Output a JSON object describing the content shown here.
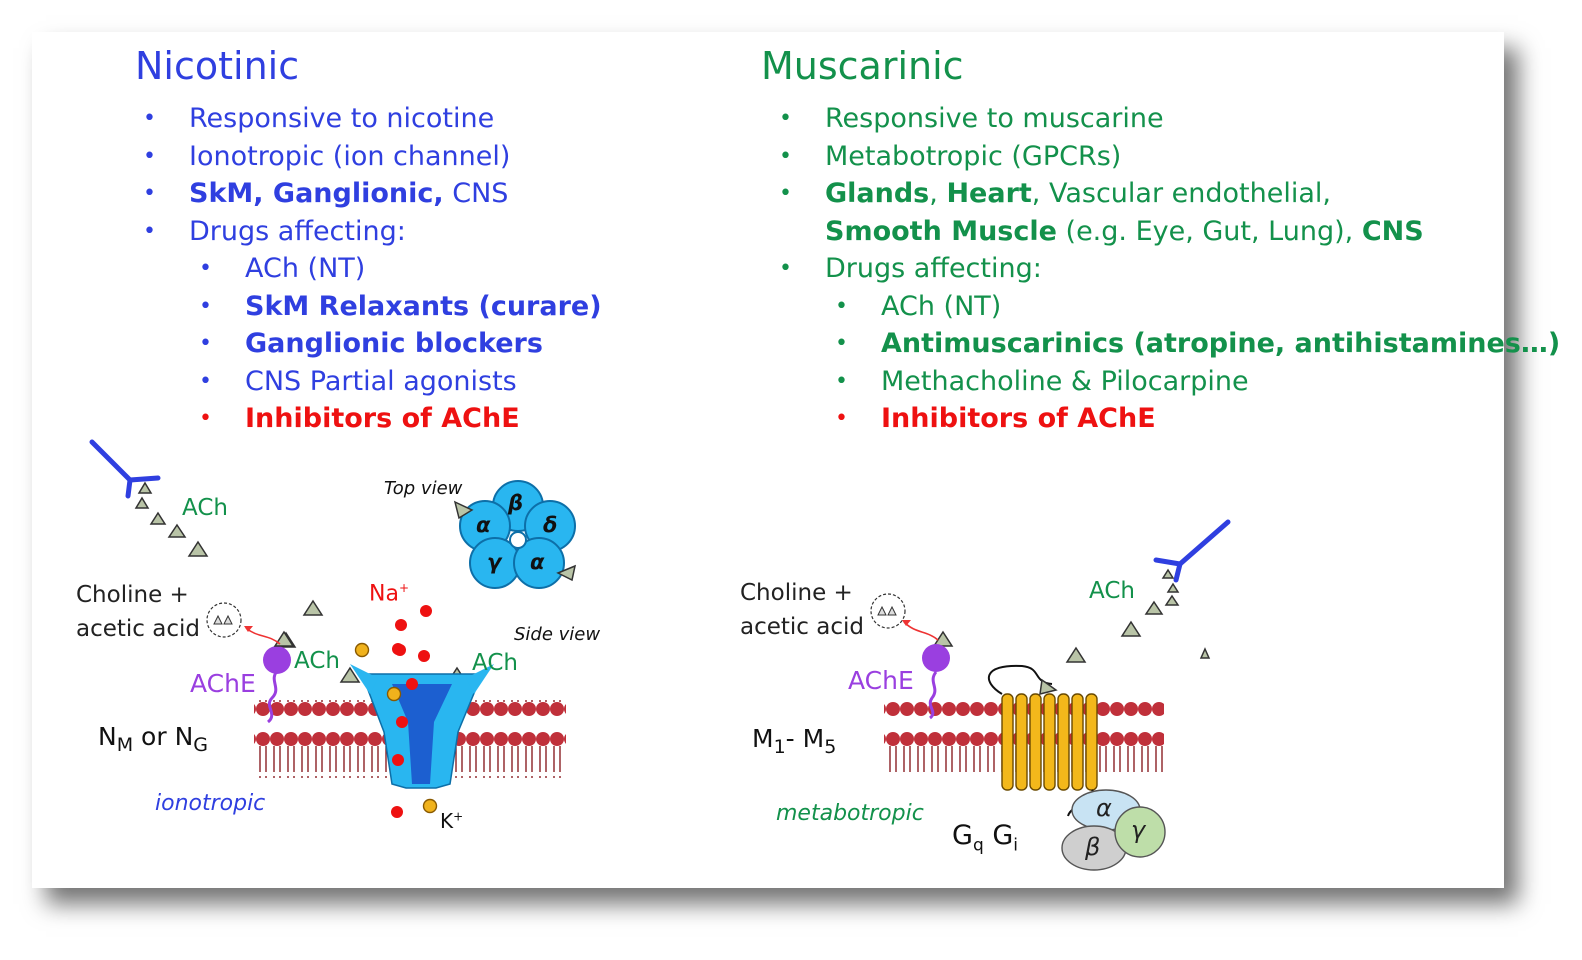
{
  "nicotinic": {
    "title": "Nicotinic",
    "bullets": [
      {
        "level": 1,
        "segments": [
          {
            "text": "Responsive to nicotine",
            "bold": false
          }
        ]
      },
      {
        "level": 1,
        "segments": [
          {
            "text": "Ionotropic (ion channel)",
            "bold": false
          }
        ]
      },
      {
        "level": 1,
        "segments": [
          {
            "text": "SkM, Ganglionic,",
            "bold": true
          },
          {
            "text": " CNS",
            "bold": false
          }
        ]
      },
      {
        "level": 1,
        "segments": [
          {
            "text": "Drugs affecting:",
            "bold": false
          }
        ]
      },
      {
        "level": 2,
        "segments": [
          {
            "text": "ACh (NT)",
            "bold": false
          }
        ]
      },
      {
        "level": 2,
        "segments": [
          {
            "text": "SkM Relaxants (curare)",
            "bold": true
          }
        ]
      },
      {
        "level": 2,
        "segments": [
          {
            "text": "Ganglionic blockers",
            "bold": true
          }
        ]
      },
      {
        "level": 2,
        "segments": [
          {
            "text": "CNS Partial agonists",
            "bold": false
          }
        ]
      },
      {
        "level": 2,
        "color": "#ee1111",
        "segments": [
          {
            "text": "Inhibitors of AChE",
            "bold": true
          }
        ]
      }
    ]
  },
  "muscarinic": {
    "title": "Muscarinic",
    "bullets": [
      {
        "level": 1,
        "segments": [
          {
            "text": "Responsive to muscarine",
            "bold": false
          }
        ]
      },
      {
        "level": 1,
        "segments": [
          {
            "text": "Metabotropic (GPCRs)",
            "bold": false
          }
        ]
      },
      {
        "level": 1,
        "segments": [
          {
            "text": "Glands",
            "bold": true
          },
          {
            "text": ", ",
            "bold": false
          },
          {
            "text": "Heart",
            "bold": true
          },
          {
            "text": ", Vascular endothelial,",
            "bold": false
          }
        ]
      },
      {
        "level": 1,
        "nodot": true,
        "segments": [
          {
            "text": "Smooth Muscle",
            "bold": true
          },
          {
            "text": " (e.g. Eye, Gut, Lung), ",
            "bold": false
          },
          {
            "text": "CNS",
            "bold": true
          }
        ]
      },
      {
        "level": 1,
        "segments": [
          {
            "text": "Drugs affecting:",
            "bold": false
          }
        ]
      },
      {
        "level": 2,
        "segments": [
          {
            "text": "ACh (NT)",
            "bold": false
          }
        ]
      },
      {
        "level": 2,
        "segments": [
          {
            "text": "Antimuscarinics (atropine, antihistamines…)",
            "bold": true
          }
        ]
      },
      {
        "level": 2,
        "segments": [
          {
            "text": "Methacholine & Pilocarpine",
            "bold": false
          }
        ]
      },
      {
        "level": 2,
        "color": "#ee1111",
        "segments": [
          {
            "text": "Inhibitors of AChE",
            "bold": true
          }
        ]
      }
    ]
  },
  "diagram_nicotinic": {
    "ach_top": "ACh",
    "top_view": "Top view",
    "subunits": [
      "β",
      "α",
      "δ",
      "γ",
      "α"
    ],
    "na": "Na",
    "na_sup": "+",
    "choline_line1": "Choline +",
    "choline_line2": "acetic acid",
    "side_view": "Side view",
    "ach_left": "ACh",
    "ach_right": "ACh",
    "ache": "AChE",
    "n_main1": "N",
    "n_sub1": "M",
    "n_or": " or N",
    "n_sub2": "G",
    "ionotropic": "ionotropic",
    "k": "K",
    "k_sup": "+"
  },
  "diagram_muscarinic": {
    "choline_line1": "Choline +",
    "choline_line2": "acetic acid",
    "ach": "ACh",
    "ache": "AChE",
    "m_main1": "M",
    "m_sub1": "1",
    "m_dash": "- M",
    "m_sub2": "5",
    "metabotropic": "metabotropic",
    "g_main1": "G",
    "g_sub1": "q",
    "g_main2": " G",
    "g_sub2": "i",
    "g_alpha": "α",
    "g_beta": "β",
    "g_gamma": "γ"
  },
  "colors": {
    "nicotinic": "#2f3fe0",
    "muscarinic": "#13914b",
    "highlight": "#ee1111",
    "ache": "#9a3fe0",
    "membrane": "#c0303a",
    "channel": "#29b6f0",
    "gpcr": "#f3b81b"
  }
}
